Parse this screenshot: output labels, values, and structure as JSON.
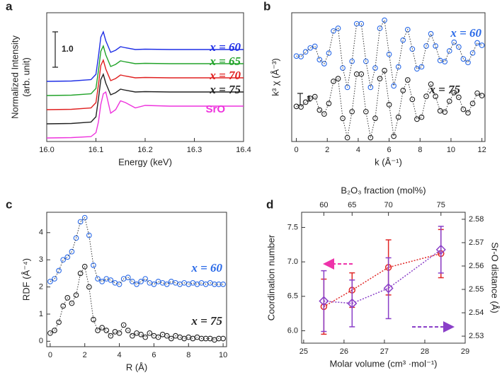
{
  "chart_data": [
    {
      "type": "line",
      "panel_label": "a",
      "x_label": "Energy (keV)",
      "y_label": [
        "Normalized Intensity",
        "(arb. unit)"
      ],
      "x": [
        16.0,
        16.05,
        16.09,
        16.1,
        16.105,
        16.11,
        16.115,
        16.12,
        16.13,
        16.14,
        16.15,
        16.16,
        16.18,
        16.2,
        16.25,
        16.3,
        16.35,
        16.4
      ],
      "xlim": [
        16.0,
        16.4
      ],
      "xticks": [
        {
          "value": 16.0,
          "label": "16.0"
        },
        16.1,
        16.2,
        16.3,
        16.4
      ],
      "ylim": [
        -0.1,
        3.54
      ],
      "scale_bar": {
        "value": 1,
        "label": "1.0"
      },
      "series": [
        {
          "name": "x = 60",
          "color": "#1f2fe6",
          "values": [
            1.6,
            1.61,
            1.65,
            1.8,
            2.3,
            2.85,
            3.0,
            2.75,
            2.42,
            2.48,
            2.58,
            2.55,
            2.5,
            2.51,
            2.5,
            2.5,
            2.5,
            2.5
          ]
        },
        {
          "name": "x = 65",
          "color": "#22a32a",
          "values": [
            1.2,
            1.21,
            1.25,
            1.4,
            1.9,
            2.45,
            2.6,
            2.35,
            2.02,
            2.08,
            2.18,
            2.15,
            2.1,
            2.11,
            2.1,
            2.1,
            2.1,
            2.1
          ]
        },
        {
          "name": "x = 70",
          "color": "#e02020",
          "values": [
            0.8,
            0.81,
            0.85,
            1.0,
            1.5,
            2.05,
            2.2,
            1.95,
            1.62,
            1.68,
            1.78,
            1.75,
            1.7,
            1.71,
            1.7,
            1.7,
            1.7,
            1.7
          ]
        },
        {
          "name": "x = 75",
          "color": "#222222",
          "values": [
            0.4,
            0.41,
            0.45,
            0.6,
            1.1,
            1.65,
            1.8,
            1.55,
            1.22,
            1.28,
            1.38,
            1.35,
            1.3,
            1.31,
            1.3,
            1.3,
            1.3,
            1.3
          ]
        },
        {
          "name": "SrO",
          "color": "#ee33dd",
          "values": [
            0,
            0.01,
            0.04,
            0.15,
            0.45,
            0.95,
            1.25,
            1.3,
            0.7,
            0.8,
            1.05,
            1.0,
            0.85,
            0.92,
            0.9,
            0.9,
            0.9,
            0.9
          ]
        }
      ]
    },
    {
      "type": "scatter",
      "panel_label": "b",
      "x_label": "k (Å⁻¹)",
      "y_label": "k³ χ (Å⁻³)",
      "x": [
        0,
        0.3,
        0.6,
        0.9,
        1.2,
        1.5,
        1.8,
        2.1,
        2.4,
        2.7,
        3,
        3.3,
        3.6,
        3.9,
        4.2,
        4.5,
        4.8,
        5.1,
        5.4,
        5.7,
        6,
        6.3,
        6.6,
        6.9,
        7.2,
        7.5,
        7.8,
        8.1,
        8.4,
        8.7,
        9,
        9.3,
        9.6,
        9.9,
        10.2,
        10.5,
        10.8,
        11.1,
        11.4,
        11.7,
        12
      ],
      "xlim": [
        -0.3,
        12.2
      ],
      "xticks": [
        0,
        2,
        4,
        6,
        8,
        10,
        12
      ],
      "ylim": [
        -6,
        5
      ],
      "scale_bar": 1,
      "series": [
        {
          "name": "x = 60",
          "color": "#2a6ae8",
          "values": [
            1.3,
            1.25,
            1.66,
            1.99,
            2.13,
            0.99,
            0.65,
            1.55,
            3.44,
            3.67,
            0.28,
            -1.37,
            0.85,
            4.06,
            4.06,
            0.85,
            -1.37,
            0.28,
            3.67,
            4.36,
            1.45,
            -1.25,
            0.38,
            2.66,
            3.56,
            1.9,
            0.21,
            0.38,
            2.16,
            3.2,
            2.16,
            0.92,
            0.82,
            1.74,
            2.48,
            2.08,
            1.05,
            0.75,
            1.56,
            2.43,
            2.22
          ]
        },
        {
          "name": "x = 75",
          "color": "#222222",
          "values": [
            -3.0,
            -3.05,
            -2.64,
            -2.31,
            -2.17,
            -3.31,
            -3.65,
            -2.75,
            -0.86,
            -0.63,
            -4.02,
            -5.67,
            -3.45,
            -0.24,
            -0.24,
            -3.45,
            -5.67,
            -4.02,
            -0.63,
            0.06,
            -2.85,
            -5.55,
            -3.92,
            -1.64,
            -0.74,
            -2.4,
            -4.09,
            -3.92,
            -2.14,
            -1.1,
            -2.14,
            -3.38,
            -3.48,
            -2.56,
            -1.82,
            -2.22,
            -3.25,
            -3.55,
            -2.75,
            -1.87,
            -2.08
          ]
        }
      ]
    },
    {
      "type": "scatter",
      "panel_label": "c",
      "x_label": "R (Å)",
      "y_label": "RDF (Å⁻⁴)",
      "x": [
        0,
        0.25,
        0.5,
        0.75,
        1,
        1.25,
        1.5,
        1.75,
        2,
        2.25,
        2.5,
        2.75,
        3,
        3.25,
        3.5,
        3.75,
        4,
        4.25,
        4.5,
        4.75,
        5,
        5.25,
        5.5,
        5.75,
        6,
        6.25,
        6.5,
        6.75,
        7,
        7.25,
        7.5,
        7.75,
        8,
        8.25,
        8.5,
        8.75,
        9,
        9.25,
        9.5,
        9.75,
        10
      ],
      "xlim": [
        -0.2,
        10.2
      ],
      "xticks": [
        0,
        2,
        4,
        6,
        8,
        10
      ],
      "ylim": [
        -0.2,
        4.75
      ],
      "yticks": [
        0,
        1,
        2,
        3,
        4
      ],
      "series": [
        {
          "name": "x = 60",
          "color": "#2a6ae8",
          "values": [
            2.2,
            2.3,
            2.6,
            3.0,
            3.1,
            3.3,
            3.8,
            4.4,
            4.55,
            3.9,
            2.8,
            2.3,
            2.2,
            2.3,
            2.25,
            2.15,
            2.1,
            2.3,
            2.35,
            2.2,
            2.1,
            2.2,
            2.3,
            2.15,
            2.1,
            2.2,
            2.15,
            2.1,
            2.2,
            2.15,
            2.1,
            2.15,
            2.1,
            2.15,
            2.1,
            2.15,
            2.1,
            2.15,
            2.1,
            2.1,
            2.1
          ]
        },
        {
          "name": "x = 75",
          "color": "#222222",
          "values": [
            0.3,
            0.4,
            0.7,
            1.3,
            1.6,
            1.4,
            1.7,
            2.5,
            2.75,
            2.0,
            0.8,
            0.4,
            0.5,
            0.4,
            0.2,
            0.35,
            0.3,
            0.6,
            0.4,
            0.2,
            0.3,
            0.25,
            0.15,
            0.3,
            0.2,
            0.15,
            0.25,
            0.2,
            0.1,
            0.2,
            0.15,
            0.1,
            0.15,
            0.1,
            0.15,
            0.1,
            0.1,
            0.1,
            0.05,
            0.1,
            0.1
          ]
        }
      ]
    },
    {
      "type": "errorbar",
      "panel_label": "d",
      "x_label": "Molar volume (cm³ ·mol⁻¹)",
      "x2_label": "B₂O₃ fraction (mol%)",
      "y_label": "Coordination number",
      "y2_label": "Sr-O distance (Å)",
      "x": [
        25.5,
        26.2,
        27.1,
        28.4
      ],
      "xlim": [
        24.95,
        29
      ],
      "xticks": [
        25,
        26,
        27,
        28,
        29
      ],
      "x2ticks": [
        {
          "value": 25.5,
          "label": "60"
        },
        {
          "value": 26.2,
          "label": "65"
        },
        {
          "value": 27.1,
          "label": "70"
        },
        {
          "value": 28.4,
          "label": "75"
        }
      ],
      "ylim": [
        5.82,
        7.72
      ],
      "yticks": [
        {
          "value": 6,
          "label": "6.0"
        },
        6.5,
        {
          "value": 7,
          "label": "7.0"
        },
        7.5
      ],
      "y2lim": [
        2.527,
        2.583
      ],
      "y2ticks": [
        2.53,
        2.54,
        2.55,
        2.56,
        2.57,
        2.58
      ],
      "series": [
        {
          "color": "#e02828",
          "values": [
            6.35,
            6.59,
            6.92,
            7.12
          ],
          "errors": [
            0.4,
            0.25,
            0.4,
            0.35
          ]
        },
        {
          "color": "#8a3fc8",
          "axis": "y2",
          "values": [
            2.545,
            2.544,
            2.5505,
            2.567
          ],
          "errors": [
            0.013,
            0.01,
            0.013,
            0.01
          ]
        }
      ]
    }
  ]
}
